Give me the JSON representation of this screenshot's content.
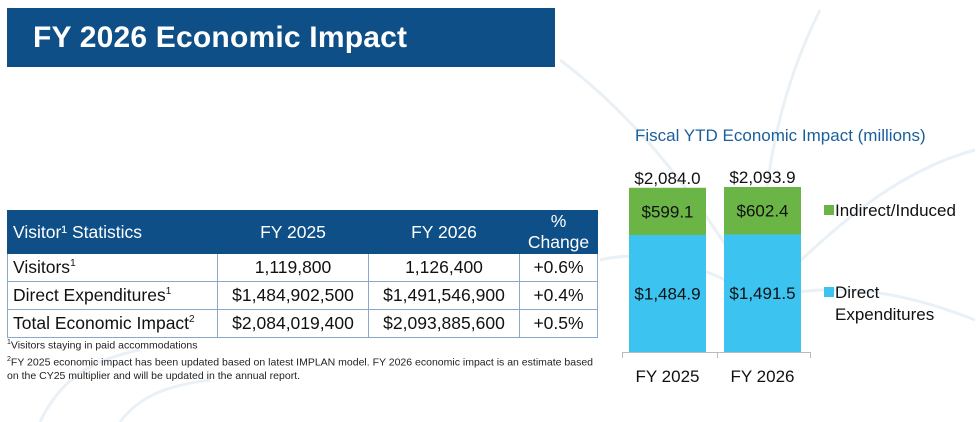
{
  "title": "FY 2026 Economic Impact",
  "table": {
    "header": [
      "Visitor¹ Statistics",
      "FY 2025",
      "FY 2026",
      "% Change"
    ],
    "rows": [
      {
        "label": "Visitors",
        "sup": "1",
        "fy2025": "1,119,800",
        "fy2026": "1,126,400",
        "change": "+0.6%"
      },
      {
        "label": "Direct Expenditures",
        "sup": "1",
        "fy2025": "$1,484,902,500",
        "fy2026": "$1,491,546,900",
        "change": "+0.4%"
      },
      {
        "label": "Total Economic Impact",
        "sup": "2",
        "fy2025": "$2,084,019,400",
        "fy2026": "$2,093,885,600",
        "change": "+0.5%"
      }
    ]
  },
  "footnotes": [
    {
      "sup": "1",
      "text": "Visitors staying in paid accommodations"
    },
    {
      "sup": "2",
      "text": "FY 2025 economic impact has been updated based on latest IMPLAN model. FY 2026 economic impact is an estimate based on the CY25 multiplier and will be updated in the annual report."
    }
  ],
  "chart_data": {
    "type": "bar",
    "stacked": true,
    "title": "Fiscal YTD Economic Impact (millions)",
    "categories": [
      "FY 2025",
      "FY 2026"
    ],
    "series": [
      {
        "name": "Direct Expenditures",
        "values": [
          1484.9,
          1491.5
        ],
        "labels": [
          "$1,484.9",
          "$1,491.5"
        ],
        "color": "#3cc3f0"
      },
      {
        "name": "Indirect/Induced",
        "values": [
          599.1,
          602.4
        ],
        "labels": [
          "$599.1",
          "$602.4"
        ],
        "color": "#6ab546"
      }
    ],
    "totals": [
      "$2,084.0",
      "$2,093.9"
    ],
    "legend_position": "right",
    "ylim": [
      0,
      2093.9
    ],
    "title_color": "#1a5f9b"
  }
}
